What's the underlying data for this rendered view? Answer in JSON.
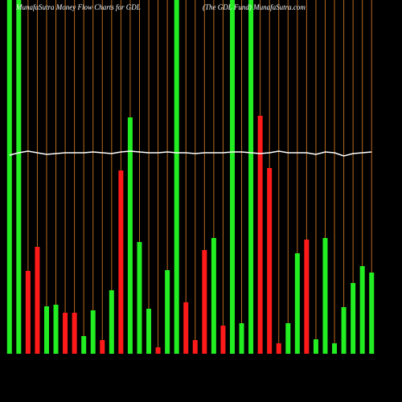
{
  "chart_data": {
    "type": "bar",
    "title": "MunafaSutra  Money Flow  Charts for GDL",
    "subtitle": "(The  GDL  Fund) MunafaSutra.com",
    "categories": [
      null,
      null,
      null,
      null,
      null,
      null,
      null,
      null,
      null,
      null,
      null,
      null,
      null,
      null,
      null,
      null,
      null,
      null,
      null,
      null,
      null,
      null,
      null,
      null,
      null,
      null,
      null,
      null,
      null,
      null,
      null,
      null,
      null,
      null,
      null,
      null,
      null,
      null,
      null,
      null
    ],
    "values": [
      440,
      440,
      103,
      133,
      59,
      61,
      51,
      51,
      22,
      54,
      17,
      79,
      228,
      294,
      139,
      56,
      8,
      104,
      440,
      64,
      17,
      129,
      144,
      35,
      440,
      38,
      440,
      296,
      231,
      13,
      38,
      125,
      142,
      18,
      144,
      13,
      58,
      88,
      109,
      101
    ],
    "colors": [
      "#22ee22",
      "#22ee22",
      "#ff1a1a",
      "#ff1a1a",
      "#22ee22",
      "#22ee22",
      "#ff1a1a",
      "#ff1a1a",
      "#22ee22",
      "#22ee22",
      "#ff1a1a",
      "#22ee22",
      "#ff1a1a",
      "#22ee22",
      "#22ee22",
      "#22ee22",
      "#ff1a1a",
      "#22ee22",
      "#22ee22",
      "#ff1a1a",
      "#ff1a1a",
      "#ff1a1a",
      "#22ee22",
      "#ff1a1a",
      "#22ee22",
      "#22ee22",
      "#22ee22",
      "#ff1a1a",
      "#ff1a1a",
      "#ff1a1a",
      "#22ee22",
      "#22ee22",
      "#ff1a1a",
      "#22ee22",
      "#22ee22",
      "#22ee22",
      "#22ee22",
      "#22ee22",
      "#22ee22",
      "#22ee22"
    ],
    "line": {
      "color": "#ffffff",
      "values": [
        247,
        250,
        252,
        250,
        248,
        249,
        250,
        250,
        250,
        251,
        250,
        249,
        251,
        252,
        251,
        250,
        250,
        251,
        250,
        250,
        249,
        250,
        250,
        250,
        251,
        251,
        250,
        249,
        250,
        252,
        250,
        250,
        250,
        248,
        251,
        250,
        246,
        249,
        250,
        251
      ]
    },
    "grid_color": "#b86a1e",
    "ylim": [
      0,
      440
    ]
  }
}
